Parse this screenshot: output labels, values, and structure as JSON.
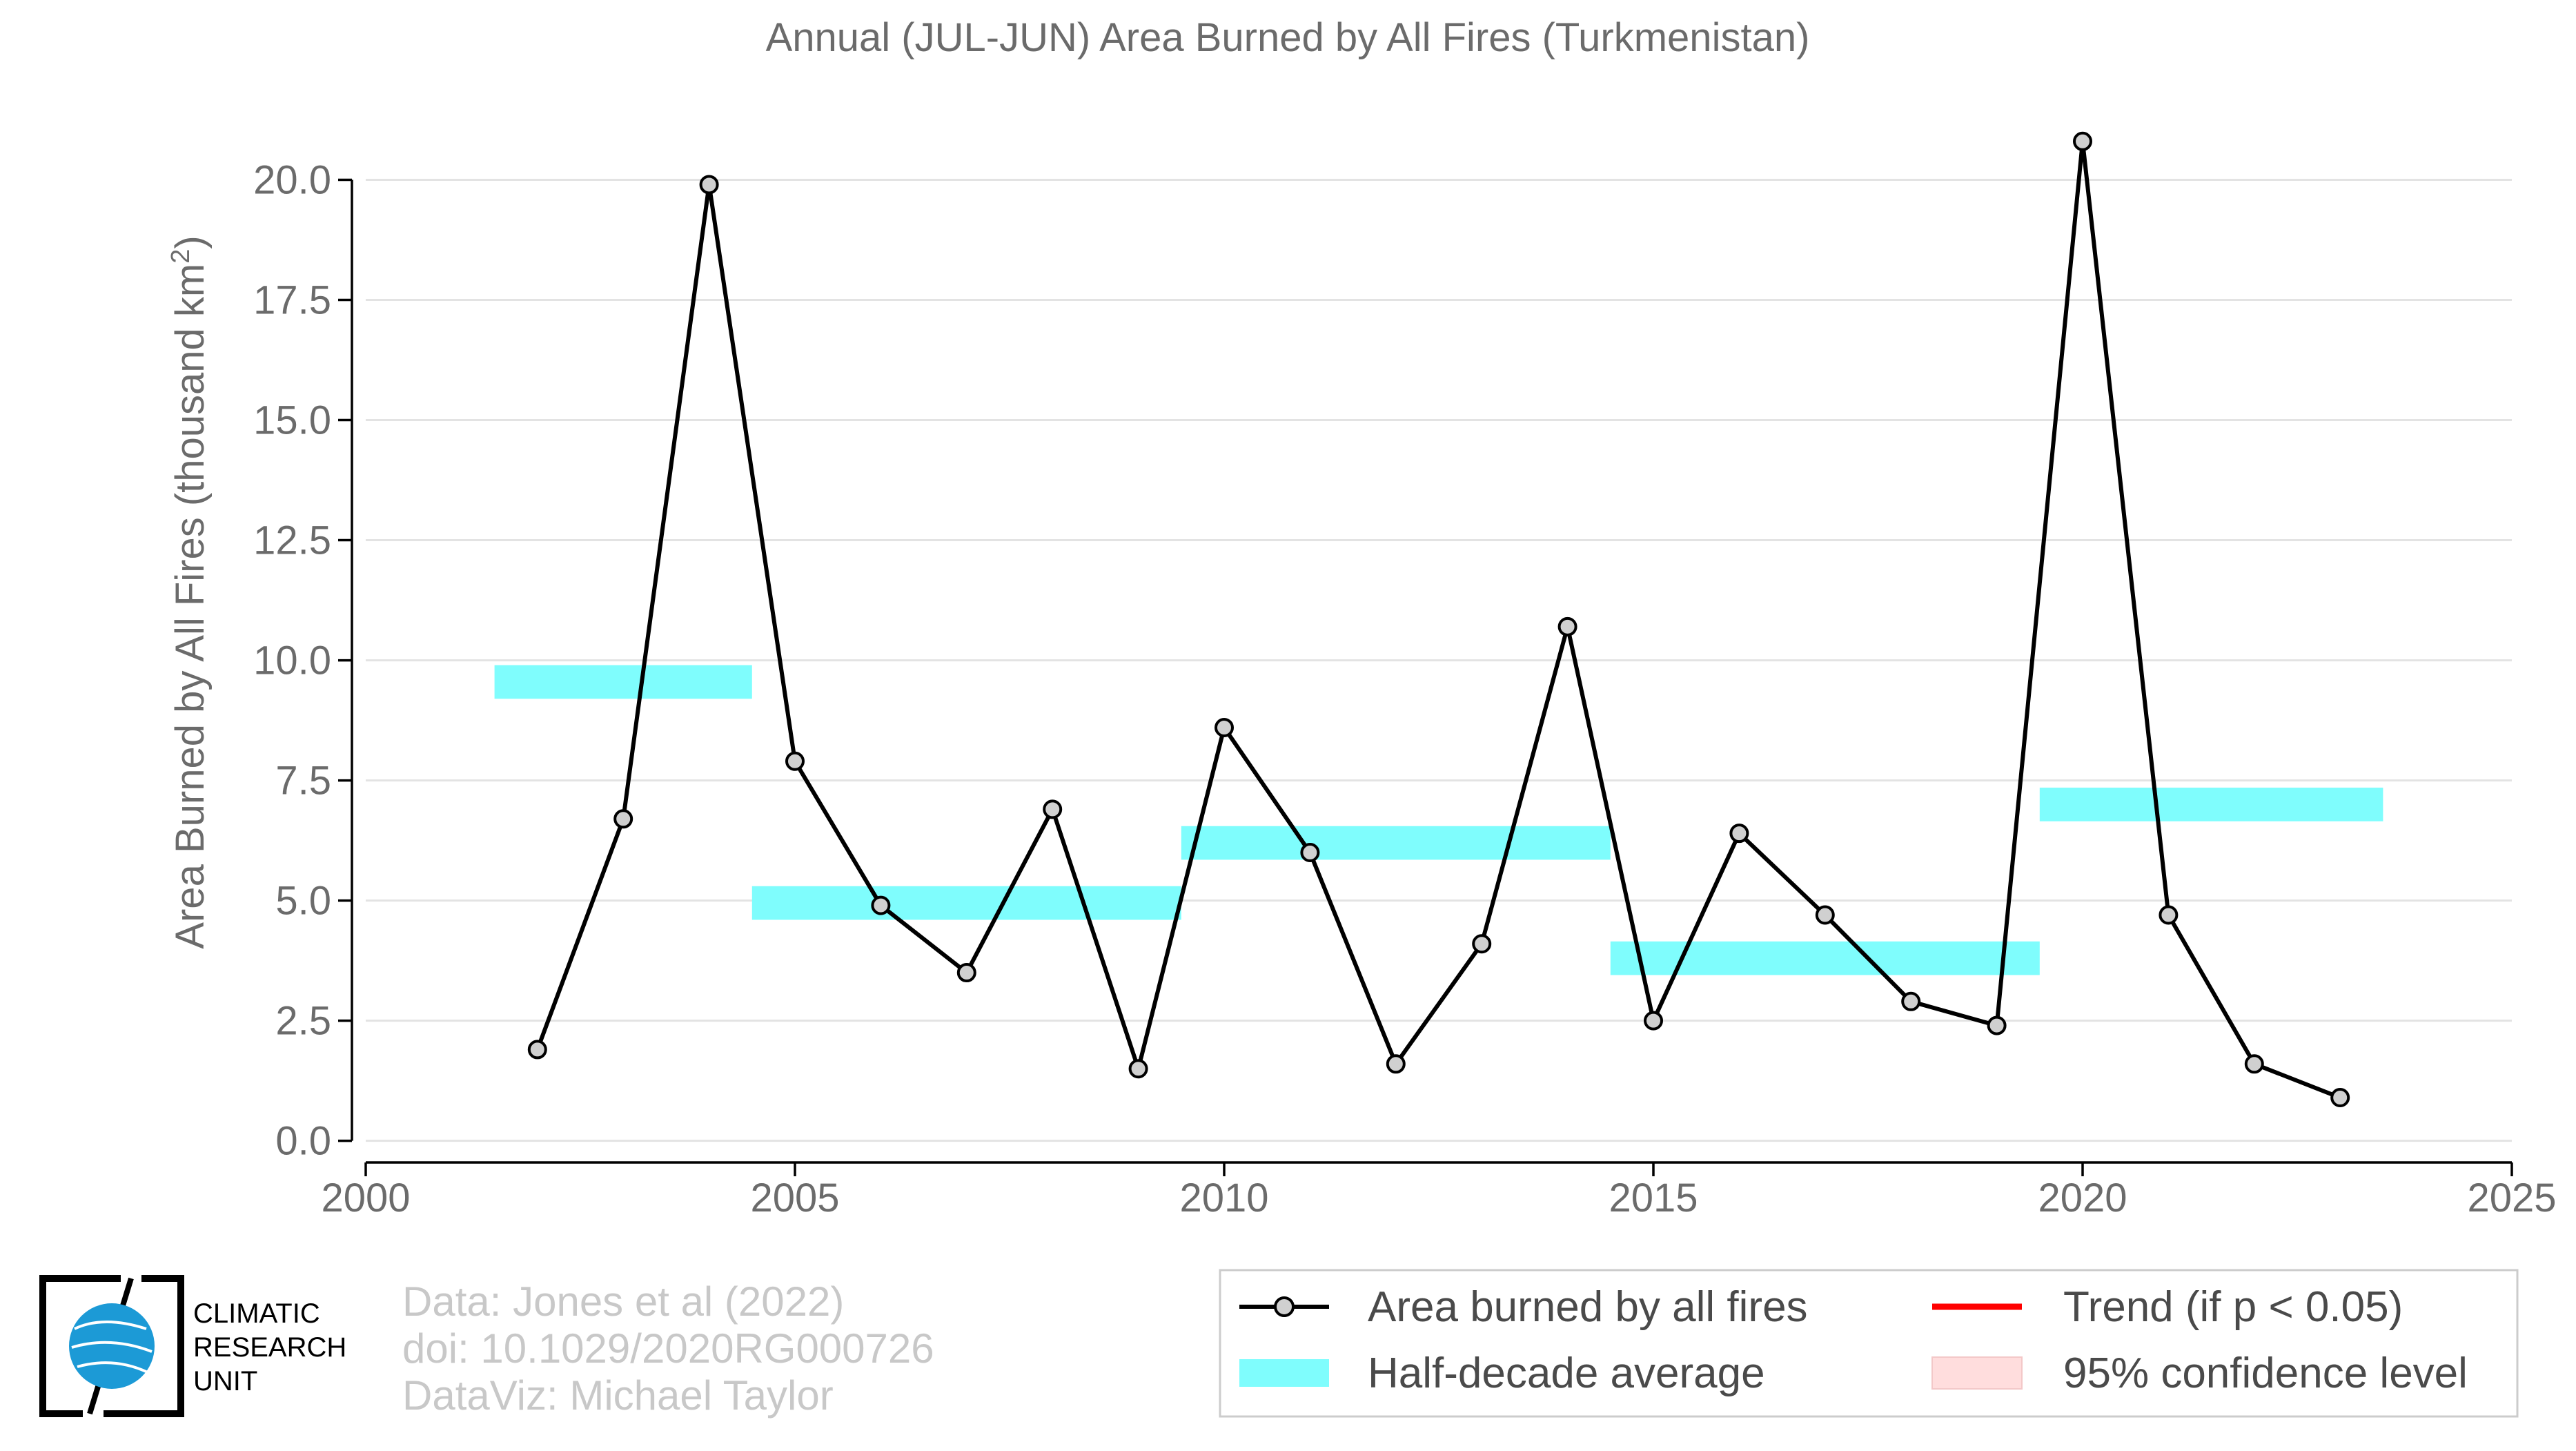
{
  "chart_data": {
    "type": "line",
    "title": "Annual (JUL-JUN) Area Burned by All Fires (Turkmenistan)",
    "xlabel": "",
    "ylabel": "Area Burned by All Fires (thousand km",
    "ylabel_sup": "2",
    "ylabel_close": ")",
    "xlim": [
      2000,
      2025
    ],
    "ylim": [
      -0.45,
      21.3
    ],
    "x_ticks": [
      2000,
      2005,
      2010,
      2015,
      2020,
      2025
    ],
    "x_tick_labels": [
      "2000",
      "2005",
      "2010",
      "2015",
      "2020",
      "2025"
    ],
    "y_ticks": [
      0,
      2.5,
      5,
      7.5,
      10,
      12.5,
      15,
      17.5,
      20
    ],
    "y_tick_labels": [
      "0.0",
      "2.5",
      "5.0",
      "7.5",
      "10.0",
      "12.5",
      "15.0",
      "17.5",
      "20.0"
    ],
    "grid": "horizontal",
    "series": [
      {
        "name": "Area burned by all fires",
        "color": "#000000",
        "x": [
          2002,
          2003,
          2004,
          2005,
          2006,
          2007,
          2008,
          2009,
          2010,
          2011,
          2012,
          2013,
          2014,
          2015,
          2016,
          2017,
          2018,
          2019,
          2020,
          2021,
          2022,
          2023
        ],
        "y": [
          1.9,
          6.7,
          19.9,
          7.9,
          4.9,
          3.5,
          6.9,
          1.5,
          8.6,
          6.0,
          1.6,
          4.1,
          10.7,
          2.5,
          6.4,
          4.7,
          2.9,
          2.4,
          20.8,
          4.7,
          1.6,
          0.9
        ]
      }
    ],
    "half_decade_averages": {
      "name": "Half-decade average",
      "color": "#7ffdfd",
      "segments": [
        {
          "x_start": 2001.5,
          "x_end": 2004.5,
          "value": 9.55
        },
        {
          "x_start": 2004.5,
          "x_end": 2009.5,
          "value": 4.95
        },
        {
          "x_start": 2009.5,
          "x_end": 2014.5,
          "value": 6.2
        },
        {
          "x_start": 2014.5,
          "x_end": 2019.5,
          "value": 3.8
        },
        {
          "x_start": 2019.5,
          "x_end": 2023.5,
          "value": 7.0
        }
      ]
    },
    "legend": {
      "placement": "bottom-right",
      "entries": [
        {
          "label": "Area burned by all fires",
          "kind": "line-marker",
          "color": "#000000"
        },
        {
          "label": "Trend (if p < 0.05)",
          "kind": "line",
          "color": "#ff0000"
        },
        {
          "label": "Half-decade average",
          "kind": "band",
          "color": "#7ffdfd"
        },
        {
          "label": "95% confidence level",
          "kind": "patch",
          "color": "#ffdddd"
        }
      ]
    }
  },
  "credits": {
    "line1": "Data: Jones et al (2022)",
    "line2": "doi: 10.1029/2020RG000726",
    "line3": "DataViz: Michael Taylor"
  },
  "logo": {
    "line1": "CLIMATIC",
    "line2": "RESEARCH",
    "line3": "UNIT",
    "color": "#1c9ad6"
  }
}
